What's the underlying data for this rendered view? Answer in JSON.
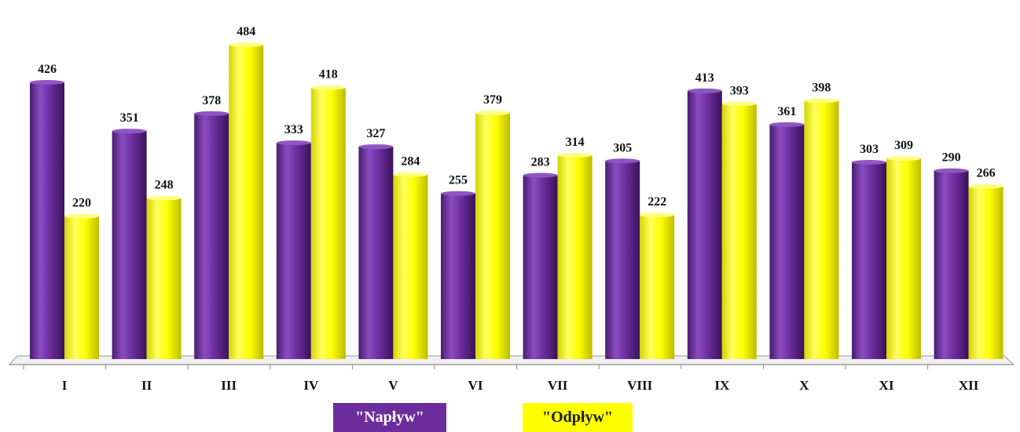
{
  "chart_data": {
    "type": "bar",
    "categories": [
      "I",
      "II",
      "III",
      "IV",
      "V",
      "VI",
      "VII",
      "VIII",
      "IX",
      "X",
      "XI",
      "XII"
    ],
    "series": [
      {
        "name": "\"Napływ\"",
        "values": [
          426,
          351,
          378,
          333,
          327,
          255,
          283,
          305,
          413,
          361,
          303,
          290
        ]
      },
      {
        "name": "\"Odpływ\"",
        "values": [
          220,
          248,
          484,
          418,
          284,
          379,
          314,
          222,
          393,
          398,
          309,
          266
        ]
      }
    ],
    "ylim": [
      0,
      500
    ],
    "grid": false,
    "legend": "bottom",
    "colors": {
      "naplyw": "#6b2d9c",
      "odplyw": "#ffff00"
    }
  }
}
